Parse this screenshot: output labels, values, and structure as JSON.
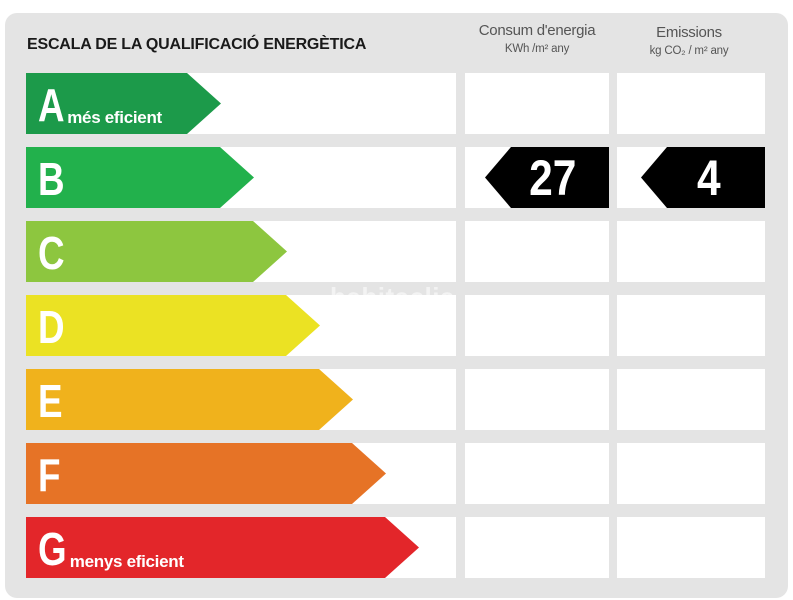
{
  "title": "ESCALA DE LA QUALIFICACIÓ ENERGÈTICA",
  "columns": {
    "consum": {
      "label": "Consum d'energia",
      "unit": "KWh /m² any"
    },
    "emissions": {
      "label": "Emissions",
      "unit": "kg CO₂ / m² any"
    }
  },
  "ratings": [
    {
      "letter": "A",
      "sub": "més eficient",
      "color": "#1c9a4a"
    },
    {
      "letter": "B",
      "sub": "",
      "color": "#22b14c"
    },
    {
      "letter": "C",
      "sub": "",
      "color": "#8dc63f"
    },
    {
      "letter": "D",
      "sub": "",
      "color": "#ebe223"
    },
    {
      "letter": "E",
      "sub": "",
      "color": "#f0b21c"
    },
    {
      "letter": "F",
      "sub": "",
      "color": "#e67326"
    },
    {
      "letter": "G",
      "sub": "menys eficient",
      "color": "#e3262a"
    }
  ],
  "result": {
    "rating": "B",
    "consum_value": "27",
    "emissions_value": "4"
  },
  "watermark": "habitaclia"
}
